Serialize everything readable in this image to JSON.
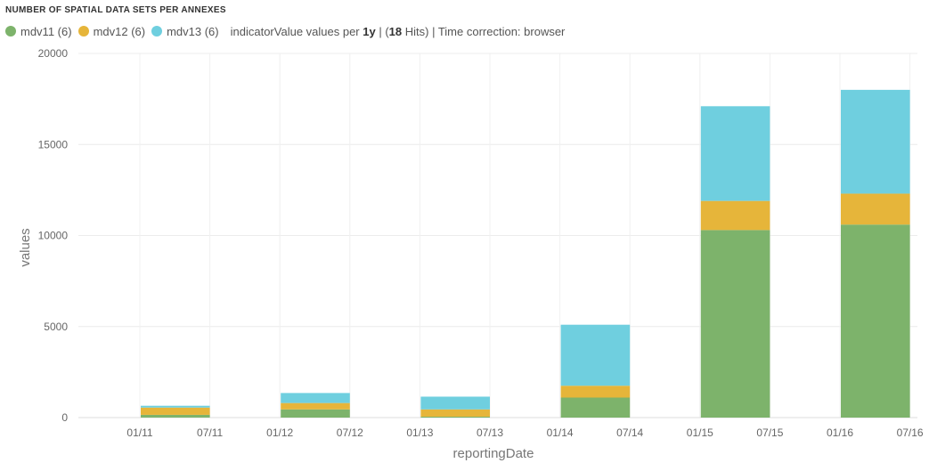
{
  "title": "NUMBER OF SPATIAL DATA SETS PER ANNEXES",
  "legend": {
    "items": [
      {
        "label": "mdv11 (6)",
        "color": "#7db36b"
      },
      {
        "label": "mdv12 (6)",
        "color": "#e6b53a"
      },
      {
        "label": "mdv13 (6)",
        "color": "#6fcfdf"
      }
    ],
    "info_prefix": "indicatorValue values per",
    "info_interval": "1y",
    "info_sep1": " | (",
    "info_hits": "18",
    "info_suffix": " Hits) | Time correction: browser"
  },
  "chart_data": {
    "type": "bar",
    "stacked": true,
    "categories": [
      "2011",
      "2012",
      "2013",
      "2014",
      "2015",
      "2016"
    ],
    "series": [
      {
        "name": "mdv11",
        "color": "#7db36b",
        "values": [
          150,
          450,
          50,
          1100,
          10300,
          10600
        ]
      },
      {
        "name": "mdv12",
        "color": "#e6b53a",
        "values": [
          400,
          350,
          400,
          650,
          1600,
          1700
        ]
      },
      {
        "name": "mdv13",
        "color": "#6fcfdf",
        "values": [
          100,
          550,
          700,
          3350,
          5200,
          5700
        ]
      }
    ],
    "xlabel": "reportingDate",
    "ylabel": "values",
    "ylim": [
      0,
      20000
    ],
    "yticks": [
      0,
      5000,
      10000,
      15000,
      20000
    ],
    "xtick_labels": [
      "01/11",
      "07/11",
      "01/12",
      "07/12",
      "01/13",
      "07/13",
      "01/14",
      "07/14",
      "01/15",
      "07/15",
      "01/16",
      "07/16"
    ],
    "grid": true
  }
}
